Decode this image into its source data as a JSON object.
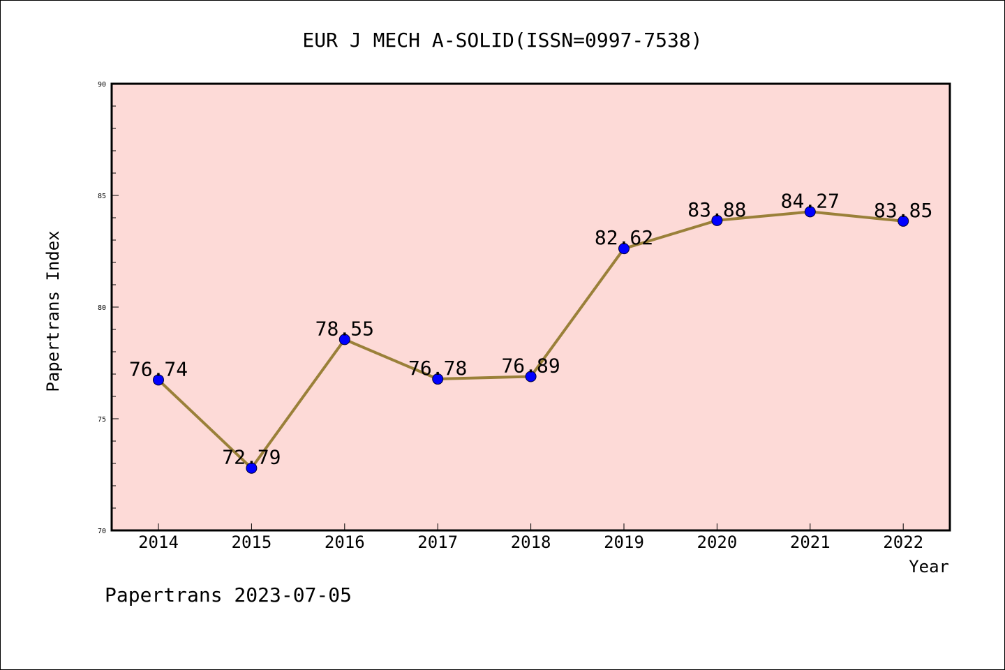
{
  "chart_data": {
    "type": "line",
    "title": "EUR J MECH A-SOLID(ISSN=0997-7538)",
    "xlabel": "Year",
    "ylabel": "Papertrans Index",
    "categories": [
      "2014",
      "2015",
      "2016",
      "2017",
      "2018",
      "2019",
      "2020",
      "2021",
      "2022"
    ],
    "series": [
      {
        "values": [
          76.74,
          72.79,
          78.55,
          76.78,
          76.89,
          82.62,
          83.88,
          84.27,
          83.85
        ]
      }
    ],
    "ylim": [
      70,
      90
    ],
    "yticks": [
      70,
      75,
      80,
      85,
      90
    ],
    "grid": false,
    "colors": {
      "plot_bg": "#fddad7",
      "line": "#9a8039",
      "marker": "#0000ff"
    }
  },
  "footer": "Papertrans 2023-07-05"
}
